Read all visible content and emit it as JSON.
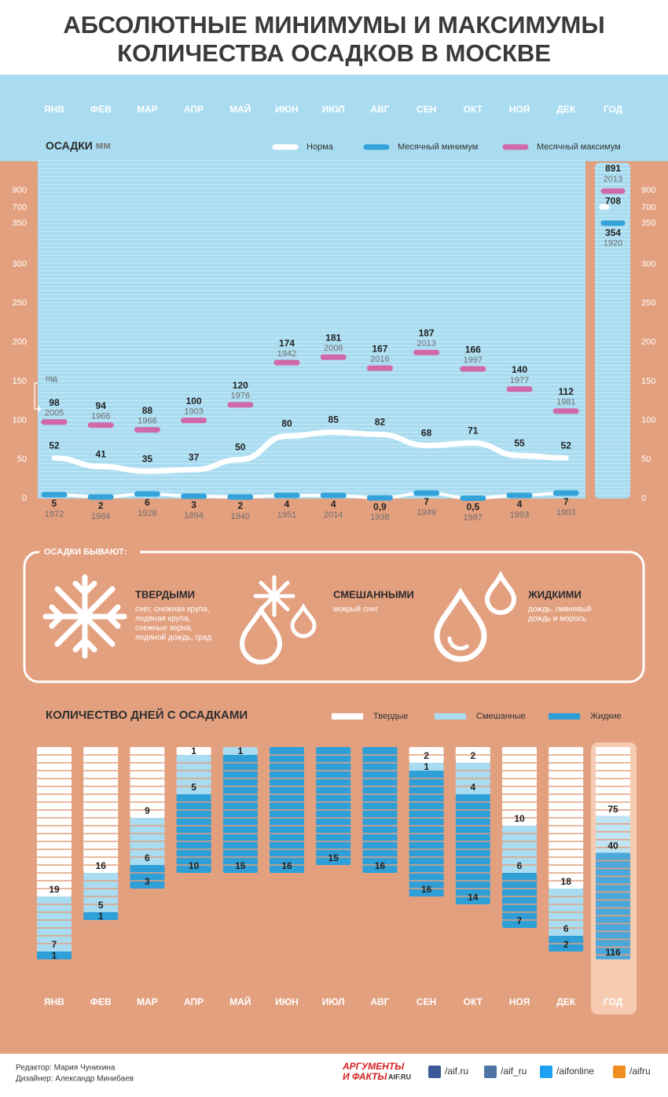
{
  "title": [
    "АБСОЛЮТНЫЕ МИНИМУМЫ И МАКСИМУМЫ",
    "КОЛИЧЕСТВА ОСАДКОВ В МОСКВЕ"
  ],
  "chart_data": [
    {
      "type": "line",
      "y_label": "Осадки",
      "y_unit": "мм",
      "annotation": "год",
      "categories": [
        "ЯНВ",
        "ФЕВ",
        "МАР",
        "АПР",
        "МАЙ",
        "ИЮН",
        "ИЮЛ",
        "АВГ",
        "СЕН",
        "ОКТ",
        "НОЯ",
        "ДЕК"
      ],
      "annual_label": "ГОД",
      "ylim": [
        0,
        300
      ],
      "yticks": [
        0,
        50,
        100,
        150,
        200,
        250,
        300
      ],
      "ybreak_ticks": [
        350,
        700,
        900
      ],
      "series": [
        {
          "name": "Норма",
          "color": "#ffffff",
          "values": [
            52,
            41,
            35,
            37,
            50,
            80,
            85,
            82,
            68,
            71,
            55,
            52
          ],
          "annual": 708
        },
        {
          "name": "Месячный минимум",
          "color": "#34a3d9",
          "values": [
            5,
            2,
            6,
            3,
            2,
            4,
            4,
            0.9,
            7,
            0.5,
            4,
            7
          ],
          "value_labels": [
            "5",
            "2",
            "6",
            "3",
            "2",
            "4",
            "4",
            "0,9",
            "7",
            "0,5",
            "4",
            "7"
          ],
          "years": [
            "1972",
            "1984",
            "1928",
            "1894",
            "1940",
            "1951",
            "2014",
            "1938",
            "1949",
            "1987",
            "1993",
            "1903"
          ],
          "annual": 354,
          "annual_year": "1920"
        },
        {
          "name": "Месячный максимум",
          "color": "#d168a8",
          "values": [
            98,
            94,
            88,
            100,
            120,
            174,
            181,
            167,
            187,
            166,
            140,
            112
          ],
          "years": [
            "2005",
            "1966",
            "1966",
            "1903",
            "1976",
            "1942",
            "2008",
            "2016",
            "2013",
            "1997",
            "1977",
            "1981"
          ],
          "annual": 891,
          "annual_year": "2013"
        }
      ]
    },
    {
      "type": "stacked_bar",
      "title": "КОЛИЧЕСТВО ДНЕЙ С ОСАДКАМИ",
      "categories": [
        "ЯНВ",
        "ФЕВ",
        "МАР",
        "АПР",
        "МАЙ",
        "ИЮН",
        "ИЮЛ",
        "АВГ",
        "СЕН",
        "ОКТ",
        "НОЯ",
        "ДЕК"
      ],
      "total_label": "ГОД",
      "series": [
        {
          "name": "Твердые",
          "color": "#ffffff",
          "values": [
            19,
            16,
            9,
            1,
            null,
            null,
            null,
            null,
            2,
            2,
            10,
            18
          ],
          "total": 75
        },
        {
          "name": "Смешанные",
          "color": "#a9dcf0",
          "values": [
            7,
            5,
            6,
            5,
            1,
            null,
            null,
            null,
            1,
            4,
            6,
            6
          ],
          "total": 40
        },
        {
          "name": "Жидкие",
          "color": "#2f9fd8",
          "values": [
            1,
            1,
            3,
            10,
            15,
            16,
            15,
            16,
            16,
            14,
            7,
            2
          ],
          "total": 116
        }
      ]
    }
  ],
  "types": {
    "title": "ОСАДКИ БЫВАЮТ:",
    "items": [
      {
        "name": "ТВЕРДЫМИ",
        "lines": [
          "снег, снежная крупа,",
          "ледяная крупа,",
          "снежные зерна,",
          "ледяной дождь, град"
        ]
      },
      {
        "name": "СМЕШАННЫМИ",
        "lines": [
          "мокрый снег"
        ]
      },
      {
        "name": "ЖИДКИМИ",
        "lines": [
          "дождь, ливневый",
          "дождь и морось"
        ]
      }
    ]
  },
  "footer": {
    "credits": [
      "Редактор: Мария Чунихина",
      "Дизайнер: Александр Минибаев"
    ],
    "logo": [
      "АРГУМЕНТЫ",
      "И ФАКТЫ",
      "AIF.RU"
    ],
    "social": [
      "/aif.ru",
      "/aif_ru",
      "/aifonline",
      "/aifru"
    ]
  }
}
